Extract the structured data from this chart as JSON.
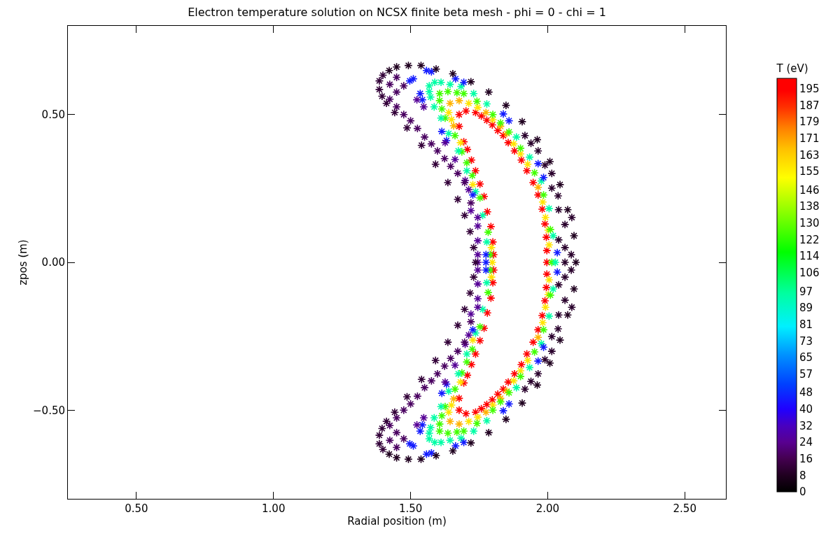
{
  "chart_data": {
    "type": "scatter",
    "title": "Electron temperature solution on NCSX finite beta mesh - phi = 0 - chi = 1",
    "xlabel": "Radial position (m)",
    "ylabel": "zpos (m)",
    "clabel": "T (eV)",
    "marker": "cross",
    "grid": false,
    "xlim": [
      0.25,
      2.65
    ],
    "xticks": [
      {
        "value": 0.5,
        "label": "0.50"
      },
      {
        "value": 1,
        "label": "1.00"
      },
      {
        "value": 1.5,
        "label": "1.50"
      },
      {
        "value": 2,
        "label": "2.00"
      },
      {
        "value": 2.5,
        "label": "2.50"
      }
    ],
    "ylim": [
      -0.8,
      0.8
    ],
    "yticks": [
      {
        "value": -0.5,
        "label": "−0.50"
      },
      {
        "value": 0,
        "label": "0.00"
      },
      {
        "value": 0.5,
        "label": "0.50"
      }
    ],
    "clim": [
      0,
      200
    ],
    "cticks": [
      0,
      8,
      16,
      24,
      32,
      40,
      48,
      57,
      65,
      73,
      81,
      89,
      97,
      106,
      114,
      122,
      130,
      138,
      146,
      155,
      163,
      171,
      179,
      187,
      195
    ],
    "series": [
      {
        "x": [
          1.677,
          1.677,
          1.702,
          1.737,
          1.758,
          1.778,
          1.798,
          1.818,
          1.838,
          1.856,
          1.879,
          1.904,
          1.924,
          1.947,
          1.965,
          1.98,
          1.99,
          1.995,
          1.997,
          1.694,
          1.707,
          1.722,
          1.737,
          1.753,
          1.768,
          1.78,
          1.793,
          1.8,
          1.803,
          1.677,
          1.677,
          1.702,
          1.737,
          1.758,
          1.778,
          1.798,
          1.818,
          1.838,
          1.856,
          1.879,
          1.904,
          1.924,
          1.947,
          1.965,
          1.98,
          1.99,
          1.995,
          1.997,
          1.694,
          1.707,
          1.722,
          1.737,
          1.753,
          1.768,
          1.78,
          1.793,
          1.8,
          1.803,
          1.997
        ],
        "values": [
          0.5,
          0.46,
          0.512,
          0.507,
          0.495,
          0.481,
          0.465,
          0.446,
          0.429,
          0.405,
          0.377,
          0.346,
          0.31,
          0.27,
          0.228,
          0.18,
          0.13,
          0.085,
          0.04,
          0.408,
          0.382,
          0.346,
          0.31,
          0.265,
          0.223,
          0.171,
          0.121,
          0.069,
          0.026,
          -0.5,
          -0.46,
          -0.512,
          -0.507,
          -0.495,
          -0.481,
          -0.465,
          -0.446,
          -0.429,
          -0.405,
          -0.377,
          -0.346,
          -0.31,
          -0.27,
          -0.228,
          -0.18,
          -0.13,
          -0.085,
          -0.04,
          -0.408,
          -0.382,
          -0.346,
          -0.31,
          -0.265,
          -0.223,
          -0.171,
          -0.121,
          -0.069,
          -0.026,
          0
        ],
        "cvalues": [
          197,
          197,
          197,
          197,
          197,
          197,
          197,
          197,
          197,
          197,
          197,
          197,
          197,
          197,
          197,
          197,
          197,
          197,
          197,
          197,
          197,
          197,
          197,
          197,
          197,
          197,
          197,
          197,
          197,
          197,
          197,
          197,
          197,
          197,
          197,
          197,
          197,
          197,
          197,
          197,
          197,
          197,
          197,
          197,
          197,
          197,
          197,
          197,
          197,
          197,
          197,
          197,
          197,
          197,
          197,
          197,
          197,
          197,
          197
        ]
      },
      {
        "x": [
          1.712,
          1.745,
          1.639,
          1.649,
          1.8,
          1.876,
          1.901,
          1.927,
          1.982,
          1.992,
          2.002,
          2.005,
          1.682,
          1.727,
          1.795,
          1.712,
          1.745,
          1.639,
          1.649,
          1.8,
          1.876,
          1.901,
          1.927,
          1.982,
          1.992,
          2.002,
          2.005,
          1.682,
          1.727,
          1.795,
          1.798
        ],
        "values": [
          0.538,
          0.524,
          0.507,
          0.483,
          0.483,
          0.401,
          0.367,
          0.332,
          0.204,
          0.152,
          0.109,
          0.059,
          0.405,
          0.263,
          0.05,
          -0.538,
          -0.524,
          -0.507,
          -0.483,
          -0.483,
          -0.401,
          -0.367,
          -0.332,
          -0.204,
          -0.152,
          -0.109,
          -0.059,
          -0.405,
          -0.263,
          -0.05,
          0
        ],
        "cvalues": [
          158,
          158,
          158,
          158,
          158,
          158,
          158,
          158,
          158,
          158,
          158,
          158,
          158,
          158,
          158,
          158,
          158,
          158,
          158,
          158,
          158,
          158,
          158,
          158,
          158,
          158,
          158,
          158,
          158,
          158,
          158
        ]
      },
      {
        "x": [
          1.644,
          1.677,
          1.657,
          1.775,
          1.828,
          1.851,
          1.965,
          1.644,
          1.677,
          1.657,
          1.775,
          1.828,
          1.851,
          1.965
        ],
        "values": [
          0.538,
          0.547,
          0.462,
          0.507,
          0.46,
          0.436,
          0.254,
          -0.538,
          -0.547,
          -0.462,
          -0.507,
          -0.46,
          -0.436,
          -0.254
        ],
        "cvalues": [
          168,
          168,
          168,
          168,
          168,
          168,
          168,
          168,
          168,
          168,
          168,
          168,
          168,
          168
        ]
      },
      {
        "x": [
          1.606,
          1.636,
          1.669,
          1.694,
          1.742,
          1.606,
          1.614,
          1.626,
          1.8,
          1.828,
          1.859,
          1.901,
          1.952,
          1.985,
          2.01,
          1.662,
          1.687,
          1.705,
          1.725,
          1.753,
          1.783,
          1.79,
          1.606,
          1.636,
          1.669,
          1.694,
          1.742,
          1.606,
          1.614,
          1.626,
          1.8,
          1.828,
          1.859,
          1.901,
          1.952,
          1.985,
          2.01,
          1.662,
          1.687,
          1.705,
          1.725,
          1.753,
          1.783,
          1.79,
          2.015
        ],
        "values": [
          0.571,
          0.578,
          0.574,
          0.571,
          0.545,
          0.547,
          0.519,
          0.488,
          0.5,
          0.472,
          0.441,
          0.386,
          0.303,
          0.228,
          0.111,
          0.429,
          0.374,
          0.337,
          0.294,
          0.218,
          0.102,
          0.026,
          -0.571,
          -0.578,
          -0.574,
          -0.571,
          -0.545,
          -0.547,
          -0.519,
          -0.488,
          -0.5,
          -0.472,
          -0.441,
          -0.386,
          -0.303,
          -0.228,
          -0.111,
          -0.429,
          -0.374,
          -0.337,
          -0.294,
          -0.218,
          -0.102,
          -0.026,
          0
        ],
        "cvalues": [
          125,
          125,
          125,
          125,
          125,
          125,
          125,
          125,
          125,
          125,
          125,
          125,
          125,
          125,
          125,
          125,
          125,
          125,
          125,
          125,
          125,
          125,
          125,
          125,
          125,
          125,
          125,
          125,
          125,
          125,
          125,
          125,
          125,
          125,
          125,
          125,
          125,
          125,
          125,
          125,
          125,
          125,
          125,
          125,
          125
        ]
      },
      {
        "x": [
          1.568,
          1.588,
          1.611,
          1.644,
          1.684,
          1.73,
          1.778,
          1.568,
          1.573,
          1.586,
          1.611,
          1.639,
          1.674,
          1.705,
          1.737,
          1.763,
          1.778,
          1.886,
          1.934,
          1.977,
          2.005,
          2.02,
          1.568,
          1.588,
          1.611,
          1.644,
          1.684,
          1.73,
          1.778,
          1.568,
          1.573,
          1.586,
          1.611,
          1.639,
          1.674,
          1.705,
          1.737,
          1.763,
          1.778,
          1.886,
          1.934,
          1.977,
          2.005,
          2.02,
          2.028
        ],
        "values": [
          0.597,
          0.609,
          0.609,
          0.602,
          0.595,
          0.571,
          0.536,
          0.578,
          0.559,
          0.526,
          0.488,
          0.436,
          0.377,
          0.31,
          0.239,
          0.159,
          0.069,
          0.424,
          0.356,
          0.275,
          0.182,
          0.09,
          -0.597,
          -0.609,
          -0.609,
          -0.602,
          -0.595,
          -0.571,
          -0.536,
          -0.578,
          -0.559,
          -0.526,
          -0.488,
          -0.436,
          -0.377,
          -0.31,
          -0.239,
          -0.159,
          -0.069,
          -0.424,
          -0.356,
          -0.275,
          -0.182,
          -0.09,
          0
        ],
        "cvalues": [
          95,
          95,
          95,
          95,
          95,
          95,
          95,
          95,
          95,
          95,
          95,
          95,
          95,
          95,
          95,
          95,
          95,
          95,
          95,
          95,
          95,
          95,
          95,
          95,
          95,
          95,
          95,
          95,
          95,
          95,
          95,
          95,
          95,
          95,
          95,
          95,
          95,
          95,
          95,
          95,
          95,
          95,
          95,
          95,
          95
        ]
      },
      {
        "x": [
          1.51,
          1.497,
          1.558,
          1.576,
          1.664,
          1.694,
          1.535,
          1.543,
          1.838,
          1.859,
          1.614,
          1.631,
          1.727,
          1.775,
          1.965,
          1.985,
          2.035,
          1.51,
          1.497,
          1.558,
          1.576,
          1.664,
          1.694,
          1.535,
          1.543,
          1.838,
          1.859,
          1.614,
          1.631,
          1.727,
          1.775,
          1.965,
          1.985,
          2.035,
          1.775
        ],
        "values": [
          0.621,
          0.614,
          0.649,
          0.645,
          0.621,
          0.609,
          0.571,
          0.55,
          0.502,
          0.479,
          0.443,
          0.412,
          0.228,
          0.026,
          0.334,
          0.287,
          0.033,
          -0.621,
          -0.614,
          -0.649,
          -0.645,
          -0.621,
          -0.609,
          -0.571,
          -0.55,
          -0.502,
          -0.479,
          -0.443,
          -0.412,
          -0.228,
          -0.026,
          -0.334,
          -0.287,
          -0.033,
          0
        ],
        "cvalues": [
          45,
          45,
          45,
          45,
          45,
          45,
          45,
          45,
          45,
          45,
          45,
          45,
          45,
          45,
          45,
          45,
          45,
          45,
          45,
          45,
          45,
          45,
          45,
          45,
          45,
          45,
          45,
          45,
          45,
          45,
          45,
          45,
          45,
          45,
          45
        ]
      },
      {
        "x": [
          1.548,
          1.523,
          1.626,
          1.662,
          1.699,
          1.712,
          1.72,
          1.745,
          1.745,
          1.745,
          1.745,
          1.548,
          1.523,
          1.626,
          1.662,
          1.699,
          1.712,
          1.72,
          1.745,
          1.745,
          1.745,
          1.745,
          1.745
        ],
        "values": [
          0.526,
          0.55,
          0.405,
          0.348,
          0.277,
          0.246,
          0.175,
          0.152,
          0.123,
          0.073,
          0.026,
          -0.526,
          -0.55,
          -0.405,
          -0.348,
          -0.277,
          -0.246,
          -0.175,
          -0.152,
          -0.123,
          -0.073,
          -0.026,
          0
        ],
        "cvalues": [
          25,
          25,
          25,
          25,
          25,
          25,
          25,
          25,
          25,
          25,
          25,
          25,
          25,
          25,
          25,
          25,
          25,
          25,
          25,
          25,
          25,
          25,
          25
        ]
      },
      {
        "x": [
          1.424,
          1.449,
          1.475,
          1.449,
          1.424,
          1.449,
          1.475,
          1.5,
          1.525,
          1.551,
          1.576,
          1.598,
          1.624,
          1.646,
          1.672,
          1.697,
          1.72,
          1.424,
          1.449,
          1.475,
          1.449,
          1.424,
          1.449,
          1.475,
          1.5,
          1.525,
          1.551,
          1.576,
          1.598,
          1.624,
          1.646,
          1.672,
          1.697,
          1.72
        ],
        "values": [
          0.602,
          0.626,
          0.597,
          0.576,
          0.552,
          0.526,
          0.5,
          0.479,
          0.453,
          0.424,
          0.401,
          0.377,
          0.351,
          0.325,
          0.301,
          0.27,
          0.201,
          -0.602,
          -0.626,
          -0.597,
          -0.576,
          -0.552,
          -0.526,
          -0.5,
          -0.479,
          -0.453,
          -0.424,
          -0.401,
          -0.377,
          -0.351,
          -0.325,
          -0.301,
          -0.27,
          -0.201
        ],
        "cvalues": [
          18,
          18,
          18,
          18,
          18,
          18,
          18,
          18,
          18,
          18,
          18,
          18,
          18,
          18,
          18,
          18,
          18,
          18,
          18,
          18,
          18,
          18,
          18,
          18,
          18,
          18,
          18,
          18,
          18,
          18,
          18,
          18,
          18,
          18
        ]
      },
      {
        "x": [
          1.422,
          1.449,
          1.492,
          1.538,
          1.593,
          1.654,
          1.72,
          1.785,
          1.848,
          1.907,
          1.962,
          2.008,
          2.045,
          2.073,
          2.096,
          1.422,
          1.449,
          1.492,
          1.538,
          1.593,
          1.654,
          1.72,
          1.785,
          1.848,
          1.907,
          1.962,
          2.008,
          2.045,
          2.073,
          2.096,
          2.103
        ],
        "values": [
          0.649,
          0.661,
          0.666,
          0.666,
          0.654,
          0.638,
          0.611,
          0.576,
          0.531,
          0.476,
          0.415,
          0.341,
          0.263,
          0.178,
          0.09,
          -0.649,
          -0.661,
          -0.666,
          -0.666,
          -0.654,
          -0.638,
          -0.611,
          -0.576,
          -0.531,
          -0.476,
          -0.415,
          -0.341,
          -0.263,
          -0.178,
          -0.09,
          0
        ],
        "cvalues": [
          8,
          8,
          8,
          8,
          8,
          8,
          8,
          8,
          8,
          8,
          8,
          8,
          8,
          8,
          8,
          8,
          8,
          8,
          8,
          8,
          8,
          8,
          8,
          8,
          8,
          8,
          8,
          8,
          8,
          8,
          8
        ]
      },
      {
        "x": [
          1.399,
          1.386,
          1.386,
          1.396,
          1.412,
          1.442,
          1.487,
          1.54,
          1.591,
          1.636,
          1.672,
          1.697,
          1.717,
          1.73,
          1.399,
          1.386,
          1.386,
          1.396,
          1.412,
          1.442,
          1.487,
          1.54,
          1.591,
          1.636,
          1.672,
          1.697,
          1.717,
          1.73,
          1.737
        ],
        "values": [
          0.633,
          0.614,
          0.585,
          0.562,
          0.538,
          0.507,
          0.455,
          0.396,
          0.332,
          0.27,
          0.213,
          0.159,
          0.104,
          0.05,
          -0.633,
          -0.614,
          -0.585,
          -0.562,
          -0.538,
          -0.507,
          -0.455,
          -0.396,
          -0.332,
          -0.27,
          -0.213,
          -0.159,
          -0.104,
          -0.05,
          0
        ],
        "cvalues": [
          12,
          12,
          12,
          12,
          12,
          12,
          12,
          12,
          12,
          12,
          12,
          12,
          12,
          12,
          12,
          12,
          12,
          12,
          12,
          12,
          12,
          12,
          12,
          12,
          12,
          12,
          12,
          12,
          12
        ]
      },
      {
        "x": [
          1.917,
          1.939,
          1.965,
          1.99,
          2.015,
          2.015,
          2.038,
          2.04,
          2.063,
          2.04,
          2.063,
          2.086,
          2.088,
          1.917,
          1.939,
          1.965,
          1.99,
          2.015,
          2.015,
          2.038,
          2.04,
          2.063,
          2.04,
          2.063,
          2.086,
          2.088,
          2.063
        ],
        "values": [
          0.429,
          0.403,
          0.377,
          0.329,
          0.301,
          0.251,
          0.225,
          0.178,
          0.128,
          0.076,
          0.05,
          0.026,
          0.152,
          -0.429,
          -0.403,
          -0.377,
          -0.329,
          -0.301,
          -0.251,
          -0.225,
          -0.178,
          -0.128,
          -0.076,
          -0.05,
          -0.026,
          -0.152,
          0
        ],
        "cvalues": [
          10,
          10,
          10,
          10,
          10,
          10,
          10,
          10,
          10,
          10,
          10,
          10,
          10,
          10,
          10,
          10,
          10,
          10,
          10,
          10,
          10,
          10,
          10,
          10,
          10,
          10,
          10
        ]
      }
    ]
  }
}
